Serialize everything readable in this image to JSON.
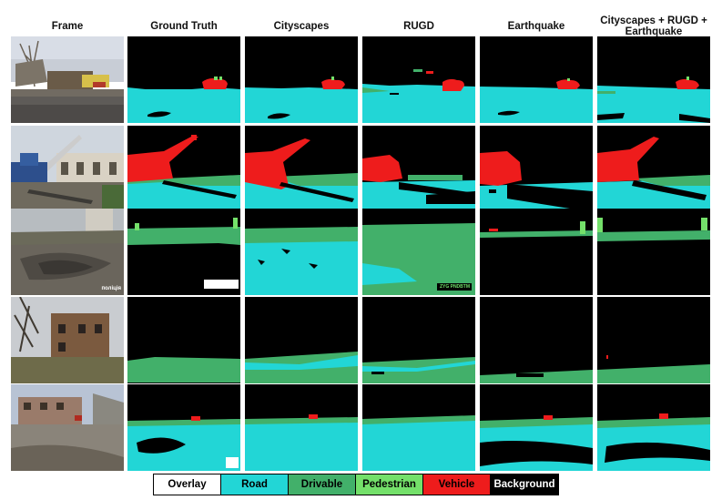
{
  "columns": [
    "Frame",
    "Ground Truth",
    "Cityscapes",
    "RUGD",
    "Earthquake",
    "Cityscapes + RUGD + Earthquake"
  ],
  "overlays": {
    "watermark_row3": "поліція",
    "watermark_row3_rugd": "ZYG PNDBTM"
  },
  "legend": [
    {
      "label": "Overlay",
      "color": "#ffffff",
      "text_color": "#000000"
    },
    {
      "label": "Road",
      "color": "#22d6d6",
      "text_color": "#000000"
    },
    {
      "label": "Drivable",
      "color": "#42b06a",
      "text_color": "#000000"
    },
    {
      "label": "Pedestrian",
      "color": "#74e06a",
      "text_color": "#000000"
    },
    {
      "label": "Vehicle",
      "color": "#ee1c1c",
      "text_color": "#000000"
    },
    {
      "label": "Background",
      "color": "#000000",
      "text_color": "#ffffff"
    }
  ],
  "colors": {
    "road": "#22d6d6",
    "drivable": "#42b06a",
    "pedestrian": "#74e06a",
    "vehicle": "#ee1c1c",
    "background": "#000000",
    "overlay": "#ffffff"
  }
}
